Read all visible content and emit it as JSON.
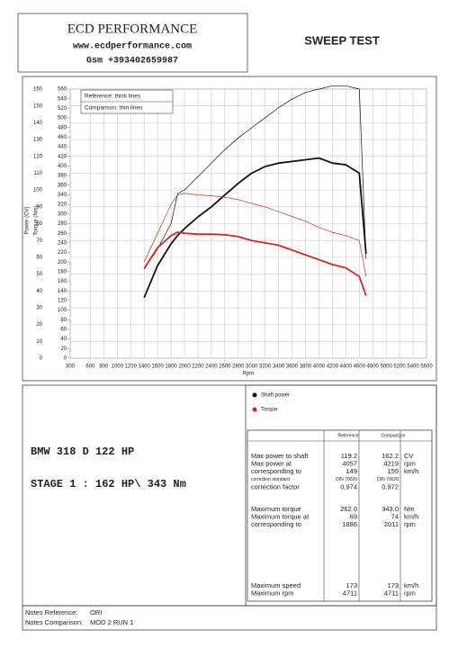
{
  "header": {
    "company": "ECD PERFORMANCE",
    "website": "www.ecdperformance.com",
    "phone": "Gsm +393402659987",
    "title": "SWEEP TEST"
  },
  "chart_data": {
    "type": "line",
    "x_label": "Rpm",
    "y_label": "Power (CV)",
    "y2_label": "Torque (Nm)",
    "legend": [
      "Reference: thick lines",
      "Comparison: thin lines"
    ],
    "x": [
      1400,
      1600,
      1800,
      1900,
      2000,
      2200,
      2400,
      2600,
      2800,
      3000,
      3200,
      3400,
      3600,
      3800,
      4000,
      4200,
      4400,
      4600,
      4700
    ],
    "series": [
      {
        "name": "Shaft power",
        "color": "#111111",
        "axis": "y",
        "reference": [
          36,
          55,
          68,
          73,
          77,
          84,
          90,
          97,
          104,
          110,
          114,
          116,
          117,
          118,
          119,
          116,
          115,
          110,
          62
        ],
        "comparison": [
          53,
          65,
          80,
          98,
          100,
          108,
          116,
          124,
          131,
          137,
          143,
          149,
          154,
          158,
          160,
          162,
          162,
          160,
          59
        ]
      },
      {
        "name": "Torque",
        "color": "#d42a22",
        "axis": "y2",
        "reference": [
          187,
          230,
          255,
          262,
          260,
          258,
          258,
          257,
          253,
          245,
          240,
          235,
          225,
          215,
          205,
          195,
          188,
          170,
          130
        ],
        "comparison": [
          200,
          260,
          320,
          340,
          343,
          340,
          338,
          335,
          330,
          322,
          315,
          305,
          295,
          285,
          272,
          262,
          255,
          245,
          170
        ]
      }
    ],
    "xlim": [
      300,
      5600
    ],
    "xticks": [
      300,
      600,
      800,
      1000,
      1200,
      1400,
      1600,
      1800,
      2000,
      2200,
      2400,
      2600,
      2800,
      3000,
      3200,
      3400,
      3600,
      3800,
      4000,
      4200,
      4400,
      4600,
      4800,
      5000,
      5200,
      5400,
      5600
    ],
    "ylim": [
      0,
      160
    ],
    "yticks": [
      0,
      10,
      20,
      30,
      40,
      50,
      60,
      70,
      80,
      90,
      100,
      110,
      120,
      130,
      140,
      150,
      160
    ],
    "y2lim": [
      0,
      560
    ],
    "y2ticks": [
      0,
      20,
      40,
      60,
      80,
      100,
      120,
      140,
      160,
      180,
      200,
      220,
      240,
      260,
      280,
      300,
      320,
      340,
      360,
      380,
      400,
      420,
      440,
      460,
      480,
      500,
      520,
      540,
      560
    ],
    "grid": true
  },
  "vehicle": {
    "model": "BMW 318 D 122 HP",
    "stage": "STAGE 1 : 162 HP\\ 343 Nm"
  },
  "results": {
    "columns": [
      "Reference",
      "Comparison"
    ],
    "groups": [
      [
        [
          "Max power to shaft",
          "119.2",
          "162.2",
          "CV"
        ],
        [
          "Max power at",
          "4057",
          "4219",
          "rpm"
        ],
        [
          "corresponding to",
          "149",
          "155",
          "km/h"
        ],
        [
          "correction standard",
          "DIN 70020",
          "DIN 70020"
        ],
        [
          "correction factor",
          "0,974",
          "0,972"
        ]
      ],
      [
        [
          "Maximum torque",
          "262.0",
          "343.0",
          "Nm"
        ],
        [
          "Maximum torque at",
          "69",
          "74",
          "km/h"
        ],
        [
          "corresponding to",
          "1886",
          "2011",
          "rpm"
        ]
      ],
      [
        [
          "Maximum speed",
          "173",
          "173",
          "km/h"
        ],
        [
          "Maximum rpm",
          "4711",
          "4711",
          "rpm"
        ]
      ]
    ]
  },
  "notes": [
    [
      "Notes Reference:",
      "ORI"
    ],
    [
      "Notes Comparison:",
      "MOD 2 RUN 1"
    ]
  ]
}
